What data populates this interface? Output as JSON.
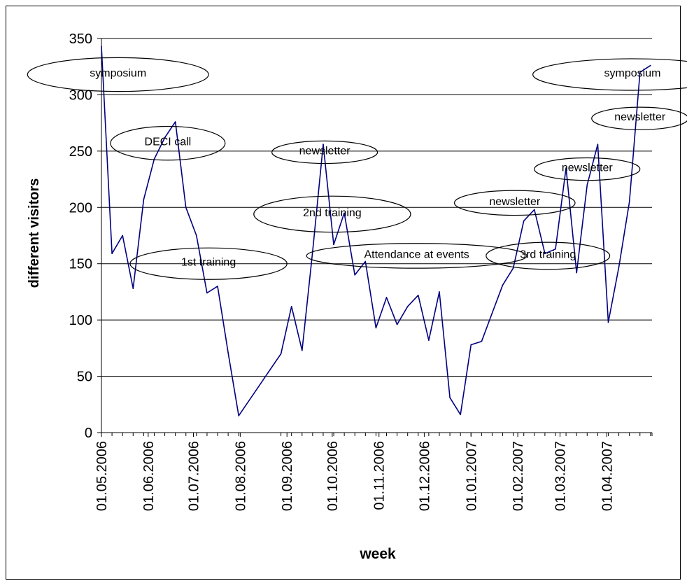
{
  "chart_data": {
    "type": "line",
    "xlabel": "week",
    "ylabel": "different visitors",
    "ylim": [
      0,
      350
    ],
    "y_ticks": [
      0,
      50,
      100,
      150,
      200,
      250,
      300,
      350
    ],
    "xlim": [
      "2006-05-01",
      "2007-05-01"
    ],
    "x_tick_labels": [
      {
        "date": "2006-05-01",
        "label": "01.05.2006"
      },
      {
        "date": "2006-06-01",
        "label": "01.06.2006"
      },
      {
        "date": "2006-07-01",
        "label": "01.07.2006"
      },
      {
        "date": "2006-08-01",
        "label": "01.08.2006"
      },
      {
        "date": "2006-09-01",
        "label": "01.09.2006"
      },
      {
        "date": "2006-10-01",
        "label": "01.10.2006"
      },
      {
        "date": "2006-11-01",
        "label": "01.11.2006"
      },
      {
        "date": "2006-12-01",
        "label": "01.12.2006"
      },
      {
        "date": "2007-01-01",
        "label": "01.01.2007"
      },
      {
        "date": "2007-02-01",
        "label": "01.02.2007"
      },
      {
        "date": "2007-03-01",
        "label": "01.03.2007"
      },
      {
        "date": "2007-04-01",
        "label": "01.04.2007"
      }
    ],
    "grid": true,
    "legend": "none",
    "line_color": "#000080",
    "series": [
      {
        "x": [
          "2006-05-01",
          "2006-05-08",
          "2006-05-15",
          "2006-05-22",
          "2006-05-29",
          "2006-06-05",
          "2006-06-12",
          "2006-06-19",
          "2006-06-26",
          "2006-07-03",
          "2006-07-10",
          "2006-07-17",
          "2006-07-24",
          "2006-07-31",
          "2006-08-28",
          "2006-09-04",
          "2006-09-11",
          "2006-09-18",
          "2006-09-25",
          "2006-10-02",
          "2006-10-09",
          "2006-10-16",
          "2006-10-23",
          "2006-10-30",
          "2006-11-06",
          "2006-11-13",
          "2006-11-20",
          "2006-11-27",
          "2006-12-04",
          "2006-12-11",
          "2006-12-18",
          "2006-12-25",
          "2007-01-01",
          "2007-01-08",
          "2007-01-15",
          "2007-01-22",
          "2007-01-29",
          "2007-02-05",
          "2007-02-12",
          "2007-02-19",
          "2007-02-26",
          "2007-03-05",
          "2007-03-12",
          "2007-03-19",
          "2007-03-26",
          "2007-04-02",
          "2007-04-09",
          "2007-04-16",
          "2007-04-23",
          "2007-04-30"
        ],
        "y": [
          343,
          159,
          175,
          128,
          207,
          243,
          262,
          276,
          200,
          175,
          124,
          130,
          71,
          15,
          70,
          112,
          73,
          161,
          256,
          167,
          195,
          140,
          152,
          93,
          120,
          96,
          112,
          122,
          82,
          125,
          31,
          16,
          78,
          81,
          106,
          131,
          146,
          188,
          198,
          159,
          163,
          235,
          142,
          220,
          256,
          98,
          147,
          205,
          320,
          326
        ]
      }
    ],
    "annotations": [
      {
        "text": "symposium",
        "x": "2006-05-12",
        "y": 318,
        "w": 60,
        "h": 15
      },
      {
        "text": "DECI call",
        "x": "2006-06-14",
        "y": 257,
        "w": 38,
        "h": 15
      },
      {
        "text": "1st training",
        "x": "2006-07-11",
        "y": 150,
        "w": 52,
        "h": 14
      },
      {
        "text": "newsletter",
        "x": "2006-09-26",
        "y": 249,
        "w": 35,
        "h": 10
      },
      {
        "text": "2nd training",
        "x": "2006-10-01",
        "y": 194,
        "w": 52,
        "h": 16
      },
      {
        "text": "Attendance at events",
        "x": "2006-11-26",
        "y": 157,
        "w": 73,
        "h": 11
      },
      {
        "text": "newsletter",
        "x": "2007-01-30",
        "y": 204,
        "w": 40,
        "h": 11
      },
      {
        "text": "3rd training",
        "x": "2007-02-21",
        "y": 157,
        "w": 41,
        "h": 12
      },
      {
        "text": "newsletter",
        "x": "2007-03-19",
        "y": 234,
        "w": 35,
        "h": 10
      },
      {
        "text": "symposium",
        "x": "2007-04-18",
        "y": 318,
        "w": 66,
        "h": 14
      },
      {
        "text": "newsletter",
        "x": "2007-04-23",
        "y": 279,
        "w": 32,
        "h": 10
      }
    ]
  }
}
